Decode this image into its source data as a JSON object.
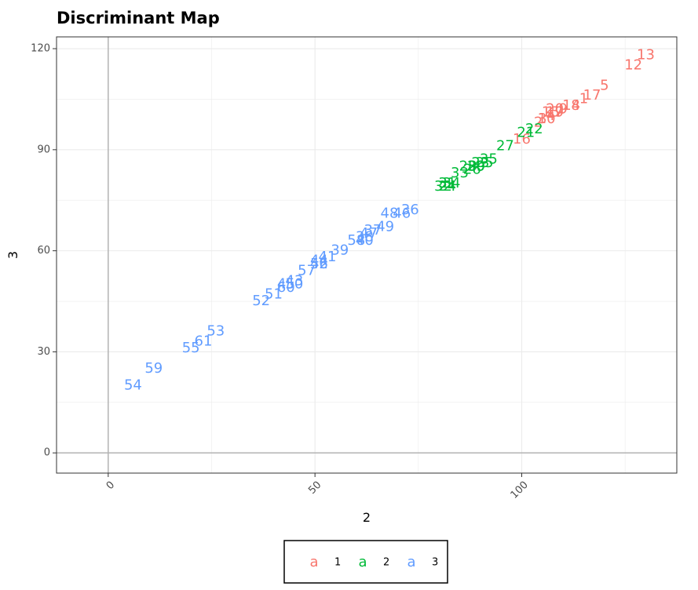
{
  "chart_data": {
    "type": "scatter",
    "title": "Discriminant Map",
    "xlabel": "2",
    "ylabel": "3",
    "xlim": [
      -12.5,
      137.5
    ],
    "ylim": [
      -6,
      123.5
    ],
    "x_ticks": [
      0,
      50,
      100
    ],
    "y_ticks": [
      0,
      30,
      60,
      90,
      120
    ],
    "grid": true,
    "reference_lines": {
      "x": 0,
      "y": 0
    },
    "legend_position": "bottom",
    "legend_key_glyph": "a",
    "series": [
      {
        "name": "1",
        "color": "#F8766D",
        "points": [
          {
            "label": "13",
            "x": 130,
            "y": 118
          },
          {
            "label": "12",
            "x": 127,
            "y": 115
          },
          {
            "label": "5",
            "x": 120,
            "y": 109
          },
          {
            "label": "17",
            "x": 117,
            "y": 106
          },
          {
            "label": "1",
            "x": 115,
            "y": 105
          },
          {
            "label": "8",
            "x": 113,
            "y": 103
          },
          {
            "label": "14",
            "x": 112,
            "y": 103
          },
          {
            "label": "9",
            "x": 110,
            "y": 102
          },
          {
            "label": "7",
            "x": 109,
            "y": 101
          },
          {
            "label": "19",
            "x": 108,
            "y": 101
          },
          {
            "label": "20",
            "x": 108,
            "y": 102
          },
          {
            "label": "4",
            "x": 107,
            "y": 100
          },
          {
            "label": "15",
            "x": 107,
            "y": 101
          },
          {
            "label": "10",
            "x": 106,
            "y": 99
          },
          {
            "label": "3",
            "x": 105,
            "y": 99
          },
          {
            "label": "2",
            "x": 104,
            "y": 98
          },
          {
            "label": "16",
            "x": 100,
            "y": 93
          }
        ]
      },
      {
        "name": "2",
        "color": "#00BA38",
        "points": [
          {
            "label": "22",
            "x": 103,
            "y": 96
          },
          {
            "label": "21",
            "x": 101,
            "y": 95
          },
          {
            "label": "27",
            "x": 96,
            "y": 91
          },
          {
            "label": "35",
            "x": 92,
            "y": 87
          },
          {
            "label": "25",
            "x": 91,
            "y": 86
          },
          {
            "label": "23",
            "x": 90,
            "y": 86
          },
          {
            "label": "29",
            "x": 89,
            "y": 85
          },
          {
            "label": "30",
            "x": 89,
            "y": 85
          },
          {
            "label": "28",
            "x": 87,
            "y": 85
          },
          {
            "label": "26",
            "x": 88,
            "y": 84
          },
          {
            "label": "33",
            "x": 85,
            "y": 83
          },
          {
            "label": "31",
            "x": 82,
            "y": 80
          },
          {
            "label": "34",
            "x": 83,
            "y": 80
          },
          {
            "label": "24",
            "x": 82,
            "y": 79
          },
          {
            "label": "32",
            "x": 81,
            "y": 79
          }
        ]
      },
      {
        "name": "3",
        "color": "#619CFF",
        "points": [
          {
            "label": "36",
            "x": 73,
            "y": 72
          },
          {
            "label": "46",
            "x": 71,
            "y": 71
          },
          {
            "label": "48",
            "x": 68,
            "y": 71
          },
          {
            "label": "49",
            "x": 67,
            "y": 67
          },
          {
            "label": "37",
            "x": 64,
            "y": 66
          },
          {
            "label": "47",
            "x": 63,
            "y": 65
          },
          {
            "label": "38",
            "x": 62,
            "y": 64
          },
          {
            "label": "40",
            "x": 62,
            "y": 63
          },
          {
            "label": "58",
            "x": 60,
            "y": 63
          },
          {
            "label": "39",
            "x": 56,
            "y": 60
          },
          {
            "label": "41",
            "x": 53,
            "y": 58
          },
          {
            "label": "44",
            "x": 51,
            "y": 57
          },
          {
            "label": "42",
            "x": 51,
            "y": 56
          },
          {
            "label": "56",
            "x": 51,
            "y": 56
          },
          {
            "label": "57",
            "x": 48,
            "y": 54
          },
          {
            "label": "43",
            "x": 45,
            "y": 51
          },
          {
            "label": "50",
            "x": 45,
            "y": 50
          },
          {
            "label": "45",
            "x": 43,
            "y": 50
          },
          {
            "label": "60",
            "x": 43,
            "y": 49
          },
          {
            "label": "51",
            "x": 40,
            "y": 47
          },
          {
            "label": "52",
            "x": 37,
            "y": 45
          },
          {
            "label": "53",
            "x": 26,
            "y": 36
          },
          {
            "label": "61",
            "x": 23,
            "y": 33
          },
          {
            "label": "55",
            "x": 20,
            "y": 31
          },
          {
            "label": "59",
            "x": 11,
            "y": 25
          },
          {
            "label": "54",
            "x": 6,
            "y": 20
          }
        ]
      }
    ]
  }
}
